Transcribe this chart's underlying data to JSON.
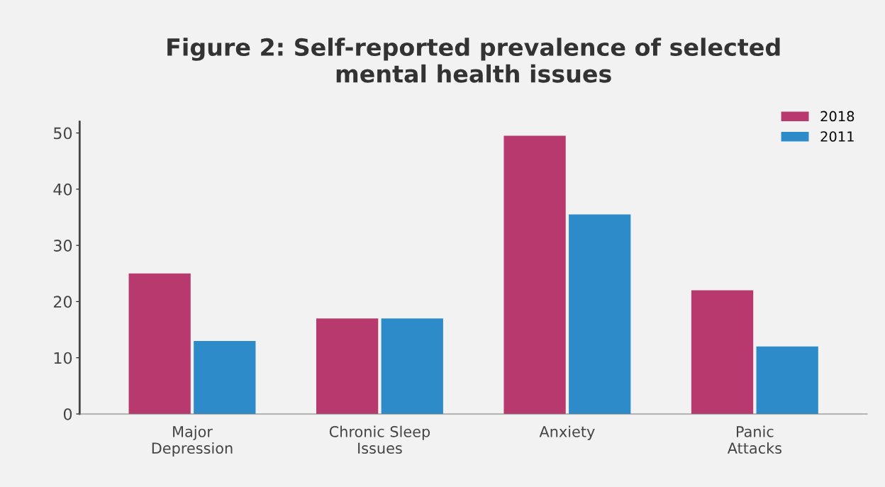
{
  "chart_data": {
    "type": "bar",
    "title": "Figure 2: Self-reported prevalence of selected\nmental health issues",
    "categories": [
      "Major\nDepression",
      "Chronic Sleep\nIssues",
      "Anxiety",
      "Panic\nAttacks"
    ],
    "series": [
      {
        "name": "2018",
        "color": "#b8396e",
        "values": [
          25,
          17,
          49.5,
          22
        ]
      },
      {
        "name": "2011",
        "color": "#2e8bc9",
        "values": [
          13,
          17,
          35.5,
          12
        ]
      }
    ],
    "ylim": [
      0,
      52
    ],
    "yticks": [
      0,
      10,
      20,
      30,
      40,
      50
    ],
    "grid": false,
    "legend": "top right"
  }
}
